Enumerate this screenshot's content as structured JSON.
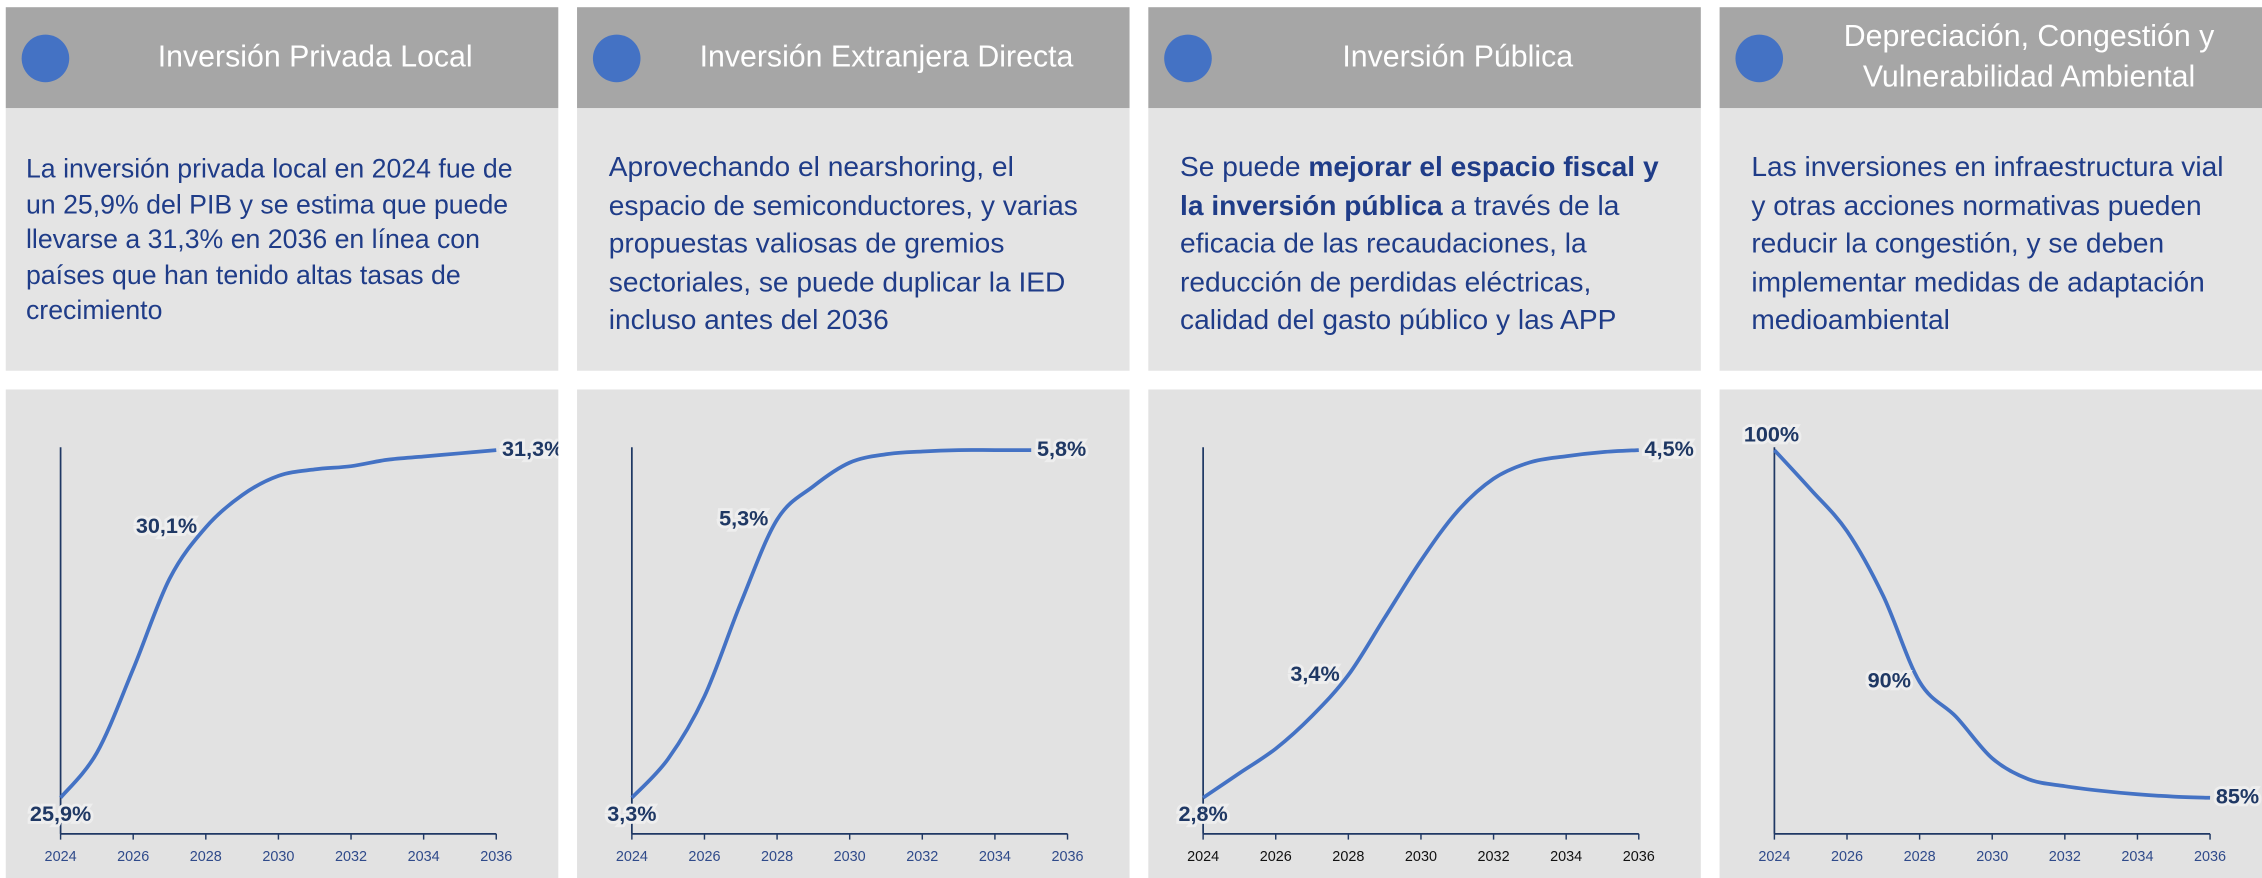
{
  "chart_data": [
    {
      "type": "line",
      "title": "Inversión Privada Local",
      "text": [
        {
          "text": "La inversión privada local en 2024 fue de un 25,9% del PIB y se estima que puede llevarse a 31,3% en 2036 en línea con países que han tenido altas tasas de crecimiento",
          "bold": false
        }
      ],
      "x": [
        2024,
        2025,
        2026,
        2027,
        2028,
        2029,
        2030,
        2031,
        2032,
        2033,
        2034,
        2035,
        2036
      ],
      "values": [
        25.9,
        26.6,
        27.9,
        29.3,
        30.1,
        30.6,
        30.9,
        31.0,
        31.05,
        31.15,
        31.2,
        31.25,
        31.3
      ],
      "value_labels": [
        "25,9%",
        null,
        null,
        null,
        "30,1%",
        null,
        null,
        null,
        null,
        null,
        null,
        null,
        "31,3%"
      ],
      "color": "#4472c4",
      "xlim": [
        2024,
        2036
      ],
      "xticks": [
        2024,
        2026,
        2028,
        2030,
        2032,
        2034,
        2036
      ]
    },
    {
      "type": "line",
      "title": "Inversión Extranjera Directa",
      "text": [
        {
          "text": "Aprovechando el nearshoring, el espacio de semiconductores, y varias propuestas valiosas de gremios sectoriales, se puede duplicar la IED incluso antes del 2036",
          "bold": false
        }
      ],
      "x": [
        2024,
        2025,
        2026,
        2027,
        2028,
        2029,
        2030,
        2031,
        2032,
        2033,
        2034,
        2035
      ],
      "values": [
        3.3,
        3.58,
        4.03,
        4.7,
        5.3,
        5.54,
        5.71,
        5.77,
        5.79,
        5.8,
        5.8,
        5.8
      ],
      "value_labels": [
        "3,3%",
        null,
        null,
        null,
        "5,3%",
        null,
        null,
        null,
        null,
        null,
        null,
        "5,8%"
      ],
      "color": "#4472c4",
      "xlim": [
        2024,
        2036
      ],
      "xticks": [
        2024,
        2026,
        2028,
        2030,
        2032,
        2034,
        2036
      ]
    },
    {
      "type": "line",
      "title": "Inversión Pública",
      "text": [
        {
          "text": "Se puede ",
          "bold": false
        },
        {
          "text": "mejorar el espacio fiscal y la inversión pública",
          "bold": true
        },
        {
          "text": " a través de la eficacia de las recaudaciones, la reducción de perdidas eléctricas, calidad del gasto público y las APP",
          "bold": false
        }
      ],
      "x": [
        2024,
        2025,
        2026,
        2027,
        2028,
        2029,
        2030,
        2031,
        2032,
        2033,
        2034,
        2035,
        2036
      ],
      "values": [
        2.8,
        2.92,
        3.04,
        3.2,
        3.4,
        3.68,
        3.96,
        4.2,
        4.36,
        4.44,
        4.47,
        4.49,
        4.5
      ],
      "value_labels": [
        "2,8%",
        null,
        null,
        null,
        "3,4%",
        null,
        null,
        null,
        null,
        null,
        null,
        null,
        "4,5%"
      ],
      "color": "#4472c4",
      "xlim": [
        2024,
        2036
      ],
      "xticks": [
        2024,
        2026,
        2028,
        2030,
        2032,
        2034,
        2036
      ]
    },
    {
      "type": "line",
      "title": "Depreciación, Congestión y Vulnerabilidad Ambiental",
      "text": [
        {
          "text": "Las inversiones en infraestructura vial y otras acciones normativas pueden reducir la congestión, y se deben implementar medidas de adaptación medioambiental",
          "bold": false
        }
      ],
      "x": [
        2024,
        2025,
        2026,
        2027,
        2028,
        2029,
        2030,
        2031,
        2032,
        2033,
        2034,
        2035,
        2036
      ],
      "values": [
        100,
        98.3,
        96.5,
        93.7,
        90,
        88.5,
        86.7,
        85.8,
        85.5,
        85.3,
        85.15,
        85.05,
        85
      ],
      "value_labels": [
        "100%",
        null,
        null,
        null,
        "90%",
        null,
        null,
        null,
        null,
        null,
        null,
        null,
        "85%"
      ],
      "color": "#4472c4",
      "xlim": [
        2024,
        2036
      ],
      "xticks": [
        2024,
        2026,
        2028,
        2030,
        2032,
        2034,
        2036
      ]
    }
  ]
}
